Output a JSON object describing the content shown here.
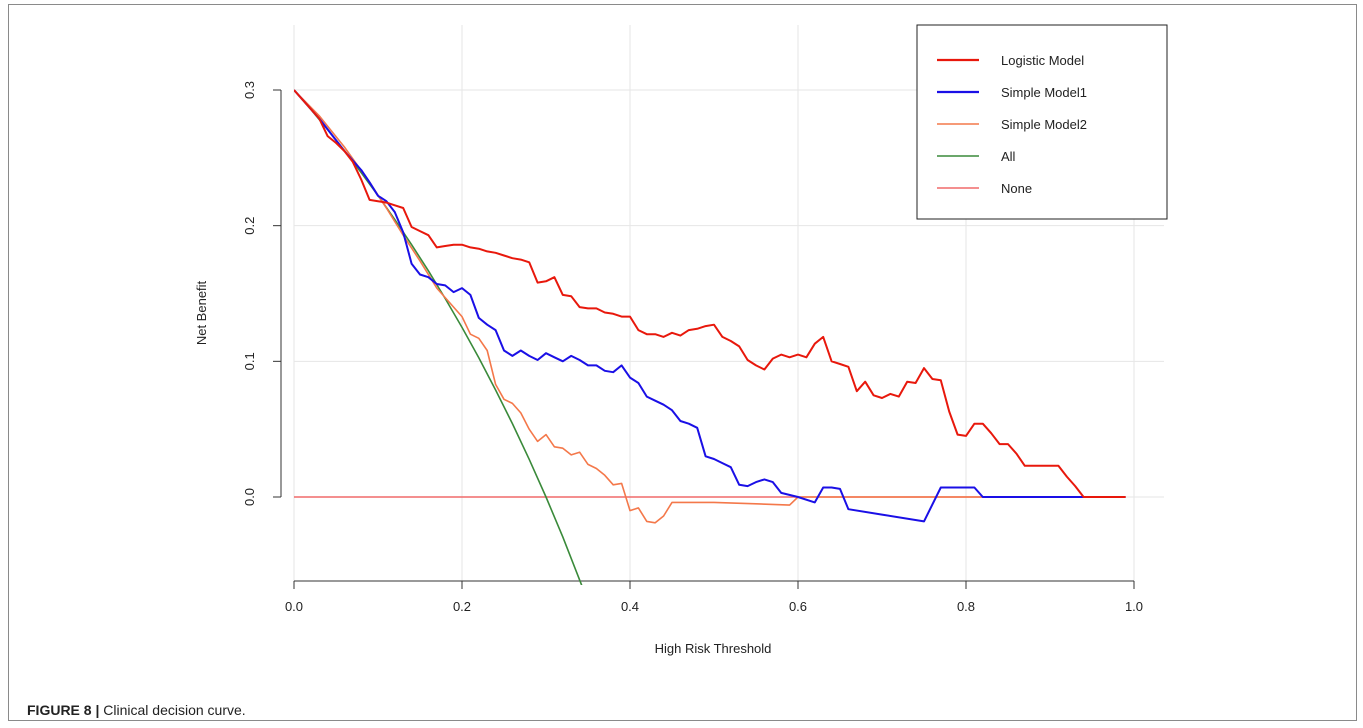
{
  "caption": {
    "label": "FIGURE 8 |",
    "text": " Clinical decision curve."
  },
  "chart_data": {
    "type": "line",
    "title": "",
    "xlabel": "High Risk Threshold",
    "ylabel": "Net Benefit",
    "xlim": [
      0.0,
      1.0
    ],
    "ylim": [
      -0.065,
      0.32
    ],
    "xticks": [
      0.0,
      0.2,
      0.4,
      0.6,
      0.8,
      1.0
    ],
    "xtick_labels": [
      "0.0",
      "0.2",
      "0.4",
      "0.6",
      "0.8",
      "1.0"
    ],
    "yticks": [
      0.0,
      0.1,
      0.2,
      0.3
    ],
    "ytick_labels": [
      "0.0",
      "0.1",
      "0.2",
      "0.3"
    ],
    "grid": true,
    "legend_position": "top-right",
    "series": [
      {
        "name": "Logistic Model",
        "color": "#e8180c",
        "x": [
          0.0,
          0.03,
          0.04,
          0.05,
          0.06,
          0.07,
          0.08,
          0.09,
          0.1,
          0.11,
          0.12,
          0.13,
          0.14,
          0.15,
          0.16,
          0.17,
          0.18,
          0.19,
          0.2,
          0.21,
          0.22,
          0.23,
          0.24,
          0.25,
          0.26,
          0.27,
          0.28,
          0.29,
          0.3,
          0.31,
          0.32,
          0.33,
          0.34,
          0.35,
          0.36,
          0.37,
          0.38,
          0.39,
          0.4,
          0.41,
          0.42,
          0.43,
          0.44,
          0.45,
          0.46,
          0.47,
          0.48,
          0.49,
          0.5,
          0.51,
          0.52,
          0.53,
          0.54,
          0.55,
          0.56,
          0.57,
          0.58,
          0.59,
          0.6,
          0.61,
          0.62,
          0.63,
          0.64,
          0.65,
          0.66,
          0.67,
          0.68,
          0.69,
          0.7,
          0.71,
          0.72,
          0.73,
          0.74,
          0.75,
          0.76,
          0.77,
          0.78,
          0.79,
          0.8,
          0.81,
          0.82,
          0.83,
          0.84,
          0.85,
          0.86,
          0.87,
          0.88,
          0.89,
          0.9,
          0.91,
          0.92,
          0.93,
          0.94,
          0.99
        ],
        "y": [
          0.3,
          0.279,
          0.266,
          0.261,
          0.255,
          0.247,
          0.234,
          0.219,
          0.218,
          0.217,
          0.215,
          0.213,
          0.199,
          0.196,
          0.193,
          0.184,
          0.185,
          0.186,
          0.186,
          0.184,
          0.183,
          0.181,
          0.18,
          0.178,
          0.176,
          0.175,
          0.173,
          0.158,
          0.159,
          0.162,
          0.149,
          0.148,
          0.14,
          0.139,
          0.139,
          0.136,
          0.135,
          0.133,
          0.133,
          0.123,
          0.12,
          0.12,
          0.118,
          0.121,
          0.119,
          0.123,
          0.124,
          0.126,
          0.127,
          0.118,
          0.115,
          0.111,
          0.101,
          0.097,
          0.094,
          0.102,
          0.105,
          0.103,
          0.105,
          0.103,
          0.113,
          0.118,
          0.1,
          0.098,
          0.096,
          0.078,
          0.085,
          0.075,
          0.073,
          0.076,
          0.074,
          0.085,
          0.084,
          0.095,
          0.087,
          0.086,
          0.063,
          0.046,
          0.045,
          0.054,
          0.054,
          0.047,
          0.039,
          0.039,
          0.032,
          0.023,
          0.023,
          0.023,
          0.023,
          0.023,
          0.015,
          0.008,
          0.0,
          0.0
        ]
      },
      {
        "name": "Simple Model1",
        "color": "#1a0fe6",
        "x": [
          0.0,
          0.03,
          0.06,
          0.08,
          0.09,
          0.1,
          0.11,
          0.12,
          0.13,
          0.14,
          0.15,
          0.16,
          0.17,
          0.18,
          0.19,
          0.2,
          0.21,
          0.22,
          0.23,
          0.24,
          0.25,
          0.26,
          0.27,
          0.28,
          0.29,
          0.3,
          0.31,
          0.32,
          0.33,
          0.34,
          0.35,
          0.36,
          0.37,
          0.38,
          0.39,
          0.4,
          0.41,
          0.42,
          0.43,
          0.44,
          0.45,
          0.46,
          0.47,
          0.48,
          0.49,
          0.5,
          0.51,
          0.52,
          0.53,
          0.54,
          0.55,
          0.56,
          0.57,
          0.58,
          0.6,
          0.62,
          0.63,
          0.64,
          0.65,
          0.66,
          0.7,
          0.75,
          0.77,
          0.8,
          0.81,
          0.82,
          0.99
        ],
        "y": [
          0.3,
          0.279,
          0.255,
          0.241,
          0.232,
          0.222,
          0.218,
          0.21,
          0.195,
          0.172,
          0.164,
          0.162,
          0.157,
          0.156,
          0.151,
          0.154,
          0.149,
          0.132,
          0.127,
          0.123,
          0.108,
          0.104,
          0.108,
          0.104,
          0.101,
          0.106,
          0.103,
          0.1,
          0.104,
          0.101,
          0.097,
          0.097,
          0.093,
          0.092,
          0.097,
          0.088,
          0.084,
          0.074,
          0.071,
          0.068,
          0.064,
          0.056,
          0.054,
          0.051,
          0.03,
          0.028,
          0.025,
          0.022,
          0.009,
          0.008,
          0.011,
          0.013,
          0.011,
          0.003,
          0.0,
          -0.004,
          0.007,
          0.007,
          0.006,
          -0.009,
          -0.013,
          -0.018,
          0.007,
          0.007,
          0.007,
          0.0,
          0.0
        ]
      },
      {
        "name": "Simple Model2",
        "color": "#f4784a",
        "x": [
          0.0,
          0.03,
          0.06,
          0.09,
          0.11,
          0.13,
          0.15,
          0.17,
          0.19,
          0.2,
          0.21,
          0.22,
          0.23,
          0.24,
          0.25,
          0.26,
          0.27,
          0.28,
          0.29,
          0.3,
          0.31,
          0.32,
          0.33,
          0.34,
          0.35,
          0.36,
          0.37,
          0.38,
          0.39,
          0.4,
          0.41,
          0.42,
          0.43,
          0.44,
          0.45,
          0.5,
          0.55,
          0.59,
          0.6,
          0.99
        ],
        "y": [
          0.3,
          0.281,
          0.258,
          0.232,
          0.213,
          0.193,
          0.174,
          0.154,
          0.14,
          0.133,
          0.12,
          0.117,
          0.108,
          0.083,
          0.072,
          0.069,
          0.062,
          0.05,
          0.041,
          0.046,
          0.037,
          0.036,
          0.031,
          0.033,
          0.024,
          0.021,
          0.016,
          0.009,
          0.01,
          -0.01,
          -0.008,
          -0.018,
          -0.019,
          -0.014,
          -0.004,
          -0.004,
          -0.005,
          -0.006,
          0.0,
          0.0
        ]
      },
      {
        "name": "All",
        "color": "#3a8a3a",
        "x": [
          0.0,
          0.02,
          0.04,
          0.06,
          0.08,
          0.1,
          0.12,
          0.14,
          0.16,
          0.18,
          0.2,
          0.22,
          0.24,
          0.26,
          0.28,
          0.3,
          0.32,
          0.3447
        ],
        "y": [
          0.3,
          0.2857,
          0.2708,
          0.2553,
          0.2391,
          0.2222,
          0.2045,
          0.186,
          0.1667,
          0.1463,
          0.125,
          0.1026,
          0.0789,
          0.0541,
          0.0278,
          0.0,
          -0.0294,
          -0.0685
        ]
      },
      {
        "name": "None",
        "color": "#f06a6a",
        "x": [
          0.0,
          0.99
        ],
        "y": [
          0.0,
          0.0
        ]
      }
    ]
  }
}
